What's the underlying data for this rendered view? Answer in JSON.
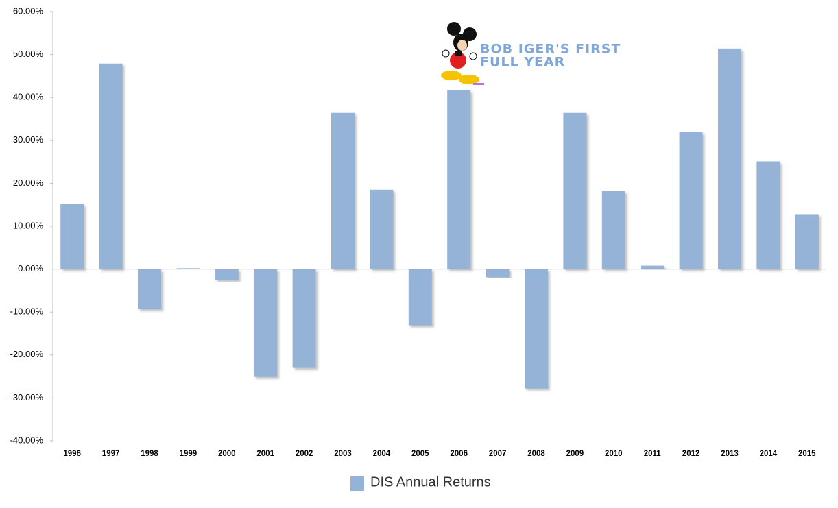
{
  "chart_data": {
    "type": "bar",
    "annotation": [
      "BOB IGER'S FIRST",
      "FULL YEAR"
    ],
    "categories": [
      "1996",
      "1997",
      "1998",
      "1999",
      "2000",
      "2001",
      "2002",
      "2003",
      "2004",
      "2005",
      "2006",
      "2007",
      "2008",
      "2009",
      "2010",
      "2011",
      "2012",
      "2013",
      "2014",
      "2015"
    ],
    "series": [
      {
        "name": "DIS Annual Returns",
        "color": "#95b3d7",
        "values": [
          15.2,
          47.9,
          -9.3,
          0.2,
          -2.6,
          -25.1,
          -23.0,
          36.4,
          18.5,
          -13.1,
          41.7,
          -1.9,
          -27.8,
          36.4,
          18.2,
          0.8,
          31.9,
          51.4,
          25.1,
          12.8
        ]
      }
    ],
    "ylim": [
      -40,
      60
    ],
    "yticks": [
      {
        "value": -40,
        "label": "-40.00%"
      },
      {
        "value": -30,
        "label": "-30.00%"
      },
      {
        "value": -20,
        "label": "-20.00%"
      },
      {
        "value": -10,
        "label": "-10.00%"
      },
      {
        "value": 0,
        "label": "0.00%"
      },
      {
        "value": 10,
        "label": "10.00%"
      },
      {
        "value": 20,
        "label": "20.00%"
      },
      {
        "value": 30,
        "label": "30.00%"
      },
      {
        "value": 40,
        "label": "40.00%"
      },
      {
        "value": 50,
        "label": "50.00%"
      },
      {
        "value": 60,
        "label": "60.00%"
      }
    ],
    "legend": "bottom"
  }
}
